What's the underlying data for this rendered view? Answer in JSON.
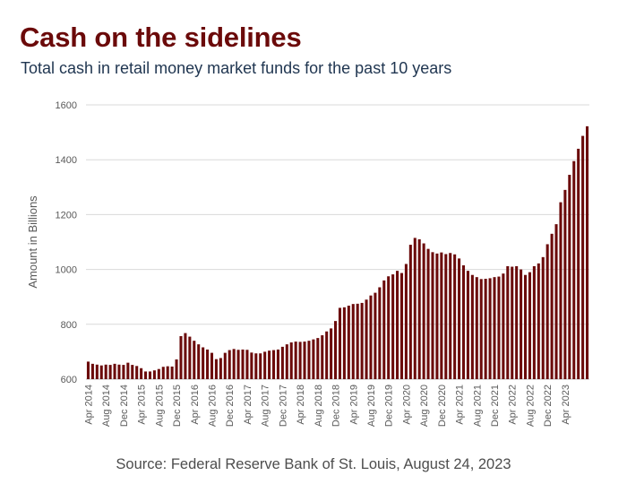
{
  "title": "Cash on the sidelines",
  "subtitle": "Total cash in retail money market funds for the past 10 years",
  "source": "Source: Federal Reserve Bank of St. Louis, August 24, 2023",
  "colors": {
    "title": "#6b0a0a",
    "bar": "#6b0a0a",
    "grid": "#d9d9d9",
    "subtitle": "#1f3550"
  },
  "chart_data": {
    "type": "bar",
    "title": "Cash on the sidelines",
    "xlabel": "",
    "ylabel": "Amount in Billions",
    "ylim": [
      600,
      1600
    ],
    "yticks": [
      600,
      800,
      1000,
      1200,
      1400,
      1600
    ],
    "grid": true,
    "legend": "none",
    "x_tick_labels": [
      "Apr 2014",
      "Aug 2014",
      "Dec 2014",
      "Apr 2015",
      "Aug 2015",
      "Dec 2015",
      "Apr 2016",
      "Aug 2016",
      "Dec 2016",
      "Apr 2017",
      "Aug 2017",
      "Dec 2017",
      "Apr 2018",
      "Aug 2018",
      "Dec 2018",
      "Apr 2019",
      "Aug 2019",
      "Dec 2019",
      "Apr 2020",
      "Aug 2020",
      "Dec 2020",
      "Apr 2021",
      "Aug 2021",
      "Dec 2021",
      "Apr 2022",
      "Aug 2022",
      "Dec 2022",
      "Apr 2023"
    ],
    "x_tick_every": 4,
    "values": [
      664,
      656,
      653,
      650,
      653,
      652,
      656,
      653,
      652,
      660,
      652,
      648,
      640,
      628,
      628,
      632,
      637,
      645,
      647,
      646,
      672,
      757,
      768,
      755,
      740,
      727,
      716,
      708,
      696,
      673,
      677,
      696,
      706,
      710,
      707,
      708,
      707,
      697,
      694,
      694,
      700,
      704,
      706,
      708,
      718,
      727,
      734,
      737,
      736,
      737,
      740,
      745,
      750,
      760,
      774,
      785,
      812,
      860,
      862,
      868,
      874,
      875,
      878,
      890,
      905,
      915,
      935,
      960,
      975,
      982,
      995,
      987,
      1020,
      1090,
      1115,
      1110,
      1095,
      1075,
      1063,
      1058,
      1062,
      1056,
      1060,
      1055,
      1040,
      1015,
      995,
      980,
      972,
      965,
      966,
      968,
      972,
      974,
      985,
      1012,
      1010,
      1012,
      1000,
      980,
      990,
      1012,
      1022,
      1045,
      1092,
      1130,
      1165,
      1245,
      1290,
      1345,
      1395,
      1440,
      1487,
      1522
    ]
  }
}
